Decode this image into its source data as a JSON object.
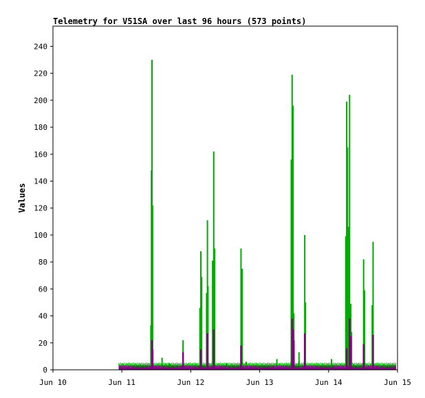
{
  "chart_data": {
    "type": "line",
    "title": "Telemetry for V51SA over last 96 hours (573 points)",
    "ylabel": "Values",
    "xlabel": "",
    "ylim": [
      0,
      255
    ],
    "yticks": [
      0,
      20,
      40,
      60,
      80,
      100,
      120,
      140,
      160,
      180,
      200,
      220,
      240
    ],
    "xlim_hours": [
      0,
      120
    ],
    "xticks": [
      {
        "label": "Jun 10",
        "hour": 0
      },
      {
        "label": "Jun 11",
        "hour": 24
      },
      {
        "label": "Jun 12",
        "hour": 48
      },
      {
        "label": "Jun 13",
        "hour": 72
      },
      {
        "label": "Jun 14",
        "hour": 96
      },
      {
        "label": "Jun 15",
        "hour": 120
      }
    ],
    "data_range_hours": [
      23,
      120
    ],
    "grid": false,
    "legend": "none",
    "series": [
      {
        "color": "#00aa00",
        "baseline": 3,
        "spikes": [
          {
            "hour": 34.3,
            "value": 148
          },
          {
            "hour": 34.5,
            "value": 230
          },
          {
            "hour": 34.7,
            "value": 122
          },
          {
            "hour": 34.1,
            "value": 33
          },
          {
            "hour": 38.0,
            "value": 9
          },
          {
            "hour": 40.5,
            "value": 5
          },
          {
            "hour": 45.3,
            "value": 22
          },
          {
            "hour": 51.2,
            "value": 46
          },
          {
            "hour": 51.5,
            "value": 88
          },
          {
            "hour": 51.8,
            "value": 69
          },
          {
            "hour": 53.5,
            "value": 57
          },
          {
            "hour": 53.8,
            "value": 111
          },
          {
            "hour": 54.0,
            "value": 62
          },
          {
            "hour": 55.6,
            "value": 81
          },
          {
            "hour": 56.0,
            "value": 162
          },
          {
            "hour": 56.3,
            "value": 90
          },
          {
            "hour": 60.5,
            "value": 5
          },
          {
            "hour": 65.5,
            "value": 90
          },
          {
            "hour": 65.9,
            "value": 75
          },
          {
            "hour": 67.3,
            "value": 6
          },
          {
            "hour": 78.0,
            "value": 8
          },
          {
            "hour": 83.0,
            "value": 156
          },
          {
            "hour": 83.3,
            "value": 219
          },
          {
            "hour": 83.6,
            "value": 196
          },
          {
            "hour": 83.9,
            "value": 42
          },
          {
            "hour": 85.7,
            "value": 13
          },
          {
            "hour": 87.7,
            "value": 100
          },
          {
            "hour": 87.9,
            "value": 50
          },
          {
            "hour": 97.0,
            "value": 8
          },
          {
            "hour": 102.0,
            "value": 99
          },
          {
            "hour": 102.3,
            "value": 199
          },
          {
            "hour": 102.6,
            "value": 165
          },
          {
            "hour": 103.0,
            "value": 106
          },
          {
            "hour": 103.3,
            "value": 204
          },
          {
            "hour": 103.7,
            "value": 49
          },
          {
            "hour": 104.0,
            "value": 28
          },
          {
            "hour": 108.2,
            "value": 82
          },
          {
            "hour": 108.5,
            "value": 59
          },
          {
            "hour": 111.2,
            "value": 48
          },
          {
            "hour": 111.5,
            "value": 95
          }
        ]
      },
      {
        "color": "#800080",
        "baseline": 1,
        "spikes": [
          {
            "hour": 34.5,
            "value": 22
          },
          {
            "hour": 34.7,
            "value": 15
          },
          {
            "hour": 45.3,
            "value": 13
          },
          {
            "hour": 51.5,
            "value": 15
          },
          {
            "hour": 53.8,
            "value": 27
          },
          {
            "hour": 56.0,
            "value": 30
          },
          {
            "hour": 65.5,
            "value": 18
          },
          {
            "hour": 83.3,
            "value": 38
          },
          {
            "hour": 83.6,
            "value": 30
          },
          {
            "hour": 83.9,
            "value": 22
          },
          {
            "hour": 87.7,
            "value": 27
          },
          {
            "hour": 102.3,
            "value": 16
          },
          {
            "hour": 103.3,
            "value": 38
          },
          {
            "hour": 103.7,
            "value": 25
          },
          {
            "hour": 108.2,
            "value": 19
          },
          {
            "hour": 111.5,
            "value": 26
          }
        ]
      }
    ]
  }
}
